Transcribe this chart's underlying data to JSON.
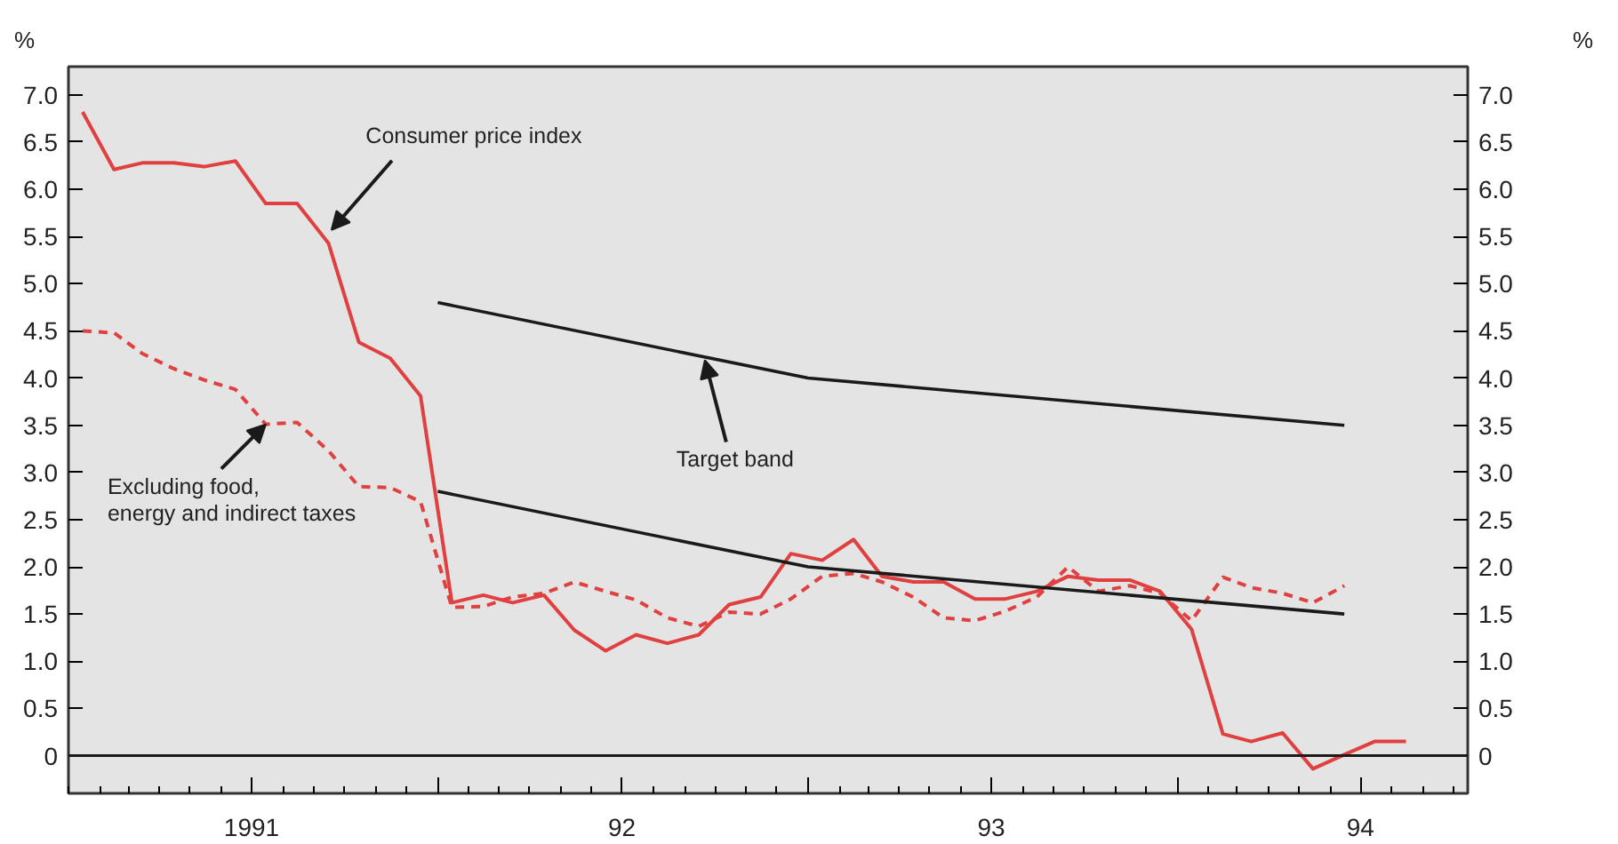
{
  "chart_data": {
    "type": "line",
    "ylabel": "%",
    "y2label": "%",
    "x": [
      "1991-01-15",
      "1991-02-15",
      "1991-03-15",
      "1991-04-15",
      "1991-05-15",
      "1991-06-15",
      "1991-07-15",
      "1991-08-15",
      "1991-09-15",
      "1991-10-15",
      "1991-11-15",
      "1991-12-15",
      "1992-01-15",
      "1992-02-15",
      "1992-03-15",
      "1992-04-15",
      "1992-05-15",
      "1992-06-15",
      "1992-07-15",
      "1992-08-15",
      "1992-09-15",
      "1992-10-15",
      "1992-11-15",
      "1992-12-15",
      "1993-01-15",
      "1993-02-15",
      "1993-03-15",
      "1993-04-15",
      "1993-05-15",
      "1993-06-15",
      "1993-07-15",
      "1993-08-15",
      "1993-09-15",
      "1993-10-15",
      "1993-11-15",
      "1993-12-15",
      "1994-01-15",
      "1994-02-15",
      "1994-03-15",
      "1994-04-15",
      "1994-05-15",
      "1994-06-15",
      "1994-07-15",
      "1994-08-15"
    ],
    "series": [
      {
        "color": "#e0403f",
        "line_style": "solid",
        "values": [
          6.82,
          6.21,
          6.28,
          6.28,
          6.24,
          6.3,
          5.85,
          5.85,
          5.43,
          4.38,
          4.21,
          3.81,
          1.62,
          1.7,
          1.62,
          1.7,
          1.33,
          1.11,
          1.28,
          1.19,
          1.28,
          1.6,
          1.68,
          2.14,
          2.07,
          2.29,
          1.9,
          1.84,
          1.84,
          1.66,
          1.66,
          1.74,
          1.9,
          1.86,
          1.86,
          1.74,
          1.34,
          0.23,
          0.15,
          0.24,
          -0.14,
          0.01,
          0.15,
          0.15
        ]
      },
      {
        "color": "#e0403f",
        "line_style": "dashed",
        "values": [
          4.5,
          4.48,
          4.26,
          4.1,
          3.98,
          3.88,
          3.51,
          3.53,
          3.23,
          2.85,
          2.84,
          2.69,
          1.57,
          1.58,
          1.68,
          1.72,
          1.84,
          1.74,
          1.65,
          1.46,
          1.37,
          1.52,
          1.5,
          1.66,
          1.9,
          1.93,
          1.84,
          1.68,
          1.46,
          1.43,
          1.53,
          1.68,
          2.0,
          1.74,
          1.8,
          1.72,
          1.43,
          1.89,
          1.78,
          1.72,
          1.62,
          1.8,
          null,
          null
        ]
      },
      {
        "color": "#1a1a1a",
        "line_style": "solid",
        "x": [
          "1992-01-01",
          "1993-01-01",
          "1994-06-15"
        ],
        "values": [
          4.8,
          4.0,
          3.5
        ]
      },
      {
        "color": "#1a1a1a",
        "line_style": "solid",
        "x": [
          "1992-01-01",
          "1993-01-01",
          "1994-06-15"
        ],
        "values": [
          2.8,
          2.0,
          1.5
        ]
      }
    ],
    "annotations": [
      {
        "text": "Consumer price index",
        "x": "1991-09-18",
        "y": 5.57
      },
      {
        "text": "Excluding food,\nenergy and indirect taxes",
        "x": "1991-07-15",
        "y": 3.51
      },
      {
        "text": "Target band",
        "x": "1992-09-21",
        "y": 4.19
      }
    ],
    "ref_lines": [
      {
        "axis": "y",
        "value": 0,
        "color": "#1a1a1a"
      }
    ],
    "xlim": [
      "1991-01-01",
      "1994-10-15"
    ],
    "xticks": [
      {
        "value": "1991-07-01",
        "label": "1991"
      },
      {
        "value": "1992-01-01",
        "label": null
      },
      {
        "value": "1992-07-01",
        "label": "92"
      },
      {
        "value": "1993-01-01",
        "label": null
      },
      {
        "value": "1993-07-01",
        "label": "93"
      },
      {
        "value": "1994-01-01",
        "label": null
      },
      {
        "value": "1994-07-01",
        "label": "94"
      }
    ],
    "ylim": [
      -0.4,
      7.3
    ],
    "yticks": [
      0,
      {
        "value": 0.5,
        "label": "0.5"
      },
      {
        "value": 1,
        "label": "1.0"
      },
      {
        "value": 1.5,
        "label": "1.5"
      },
      {
        "value": 2,
        "label": "2.0"
      },
      {
        "value": 2.5,
        "label": "2.5"
      },
      {
        "value": 3,
        "label": "3.0"
      },
      {
        "value": 3.5,
        "label": "3.5"
      },
      {
        "value": 4,
        "label": "4.0"
      },
      {
        "value": 4.5,
        "label": "4.5"
      },
      {
        "value": 5,
        "label": "5.0"
      },
      {
        "value": 5.5,
        "label": "5.5"
      },
      {
        "value": 6,
        "label": "6.0"
      },
      {
        "value": 6.5,
        "label": "6.5"
      },
      {
        "value": 7,
        "label": "7.0"
      }
    ],
    "y2lim": [
      -0.4,
      7.3
    ],
    "y2ticks": [
      0,
      {
        "value": 0.5,
        "label": "0.5"
      },
      {
        "value": 1,
        "label": "1.0"
      },
      {
        "value": 1.5,
        "label": "1.5"
      },
      {
        "value": 2,
        "label": "2.0"
      },
      {
        "value": 2.5,
        "label": "2.5"
      },
      {
        "value": 3,
        "label": "3.0"
      },
      {
        "value": 3.5,
        "label": "3.5"
      },
      {
        "value": 4,
        "label": "4.0"
      },
      {
        "value": 4.5,
        "label": "4.5"
      },
      {
        "value": 5,
        "label": "5.0"
      },
      {
        "value": 5.5,
        "label": "5.5"
      },
      {
        "value": 6,
        "label": "6.0"
      },
      {
        "value": 6.5,
        "label": "6.5"
      },
      {
        "value": 7,
        "label": "7.0"
      }
    ],
    "grid": false,
    "marker": "none"
  }
}
